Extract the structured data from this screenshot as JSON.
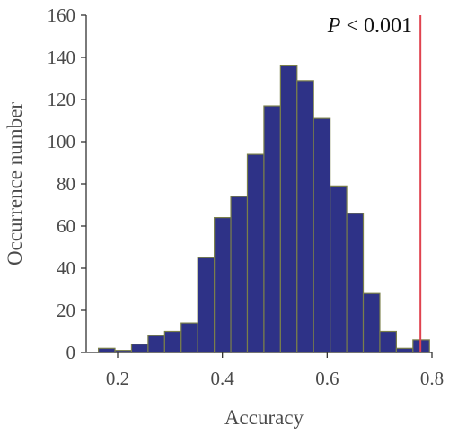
{
  "chart_data": {
    "type": "bar",
    "subtype": "histogram",
    "xlabel": "Accuracy",
    "ylabel": "Occurrence number",
    "xlim": [
      0.14,
      0.8
    ],
    "ylim": [
      0,
      160
    ],
    "xticks": [
      "0.2",
      "0.4",
      "0.6",
      "0.8"
    ],
    "yticks": [
      "0",
      "20",
      "40",
      "60",
      "80",
      "100",
      "120",
      "140",
      "160"
    ],
    "bin_width": 0.0316,
    "bins": [
      {
        "x_start": 0.1633,
        "count": 2
      },
      {
        "x_start": 0.1949,
        "count": 1
      },
      {
        "x_start": 0.2265,
        "count": 4
      },
      {
        "x_start": 0.2581,
        "count": 8
      },
      {
        "x_start": 0.2897,
        "count": 10
      },
      {
        "x_start": 0.3213,
        "count": 14
      },
      {
        "x_start": 0.3529,
        "count": 45
      },
      {
        "x_start": 0.3845,
        "count": 64
      },
      {
        "x_start": 0.4161,
        "count": 74
      },
      {
        "x_start": 0.4477,
        "count": 94
      },
      {
        "x_start": 0.4793,
        "count": 117
      },
      {
        "x_start": 0.5109,
        "count": 136
      },
      {
        "x_start": 0.5425,
        "count": 129
      },
      {
        "x_start": 0.5741,
        "count": 111
      },
      {
        "x_start": 0.6057,
        "count": 79
      },
      {
        "x_start": 0.6373,
        "count": 66
      },
      {
        "x_start": 0.6689,
        "count": 28
      },
      {
        "x_start": 0.7005,
        "count": 10
      },
      {
        "x_start": 0.7321,
        "count": 2
      },
      {
        "x_start": 0.7637,
        "count": 6
      }
    ],
    "reference_line": {
      "x": 0.778,
      "color": "#e0434f"
    },
    "annotation": "P < 0.001",
    "annotation_parts": {
      "symbol": "P",
      "rest": " < 0.001"
    },
    "bar_color": "#2e3287",
    "bar_edge_color": "#7a7f4a",
    "grid": false
  }
}
